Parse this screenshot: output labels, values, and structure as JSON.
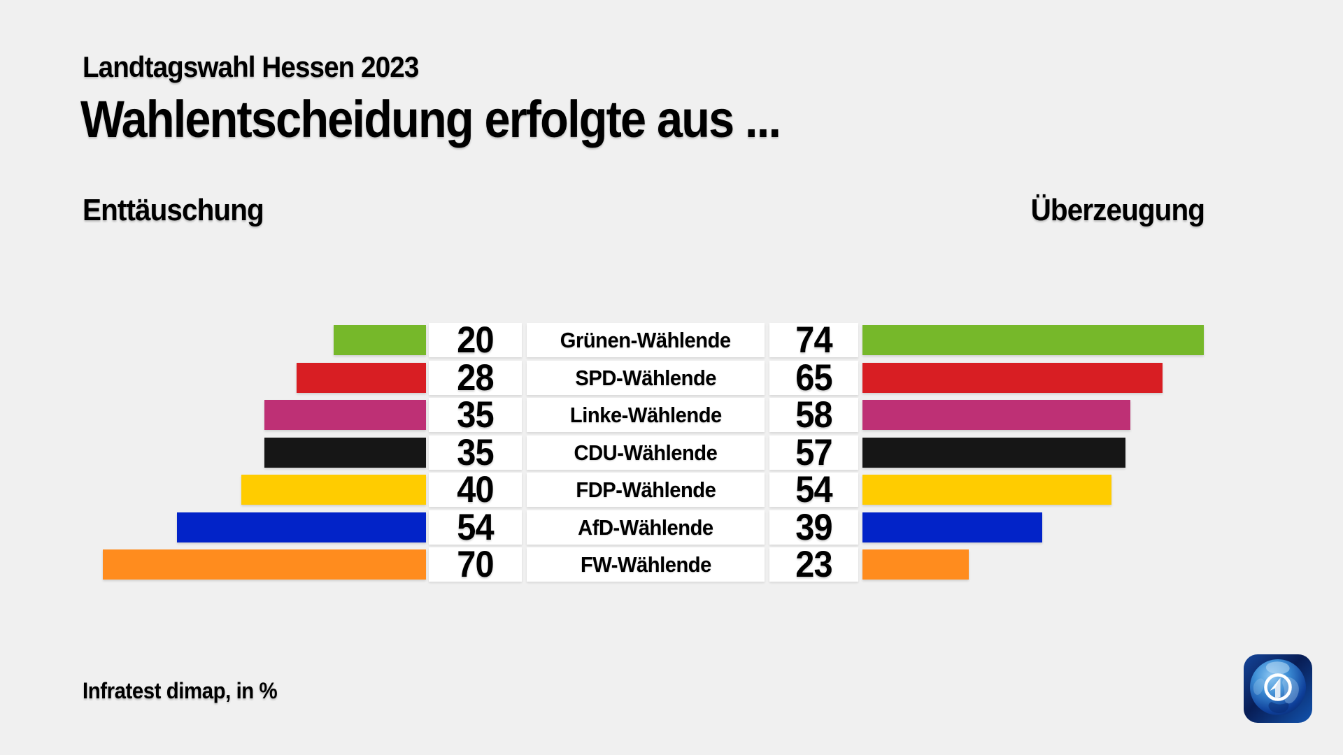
{
  "header": {
    "kicker": "Landtagswahl Hessen 2023",
    "title": "Wahlentscheidung erfolgte aus ...",
    "left_axis_label": "Enttäuschung",
    "right_axis_label": "Überzeugung"
  },
  "footer": {
    "source": "Infratest dimap, in %"
  },
  "logo": {
    "name": "ARD tagesschau globe logo"
  },
  "colors": {
    "background": "#F0F0F0",
    "row_cell_background": "#FFFFFF",
    "text": "#000000"
  },
  "chart_data": {
    "type": "bar",
    "variant": "diverging-horizontal",
    "unit": "%",
    "title": "Wahlentscheidung erfolgte aus ...",
    "categories": [
      "Grünen-Wählende",
      "SPD-Wählende",
      "Linke-Wählende",
      "CDU-Wählende",
      "FDP-Wählende",
      "AfD-Wählende",
      "FW-Wählende"
    ],
    "series": [
      {
        "name": "Enttäuschung",
        "side": "left",
        "values": [
          20,
          28,
          35,
          35,
          40,
          54,
          70
        ]
      },
      {
        "name": "Überzeugung",
        "side": "right",
        "values": [
          74,
          65,
          58,
          57,
          54,
          39,
          23
        ]
      }
    ],
    "bar_colors": [
      "#76B82A",
      "#D81E23",
      "#BE3075",
      "#161616",
      "#FFCC00",
      "#0223C8",
      "#FF8C1E"
    ],
    "axis_range": [
      0,
      80
    ],
    "grid": false,
    "value_labels": "inline-white-cells"
  }
}
